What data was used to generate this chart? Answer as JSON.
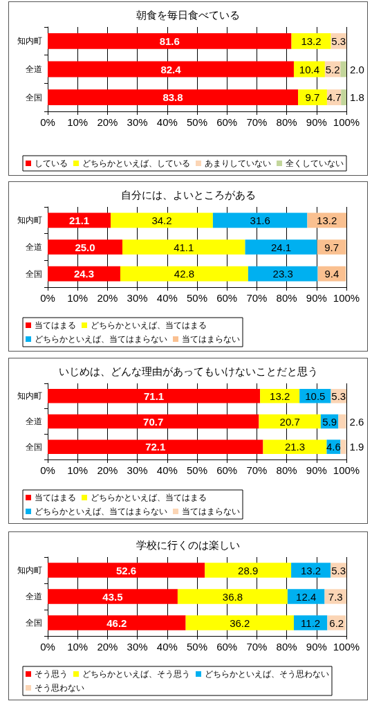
{
  "chart_data": [
    {
      "type": "bar",
      "title": "朝食を毎日食べている",
      "orientation": "horizontal",
      "stacked": true,
      "categories": [
        "知内町",
        "全道",
        "全国"
      ],
      "xlim": [
        0,
        100
      ],
      "xticks": [
        {
          "value": 0,
          "label": "0%"
        },
        {
          "value": 10,
          "label": "10%"
        },
        {
          "value": 20,
          "label": "20%"
        },
        {
          "value": 30,
          "label": "30%"
        },
        {
          "value": 40,
          "label": "40%"
        },
        {
          "value": 50,
          "label": "50%"
        },
        {
          "value": 60,
          "label": "60%"
        },
        {
          "value": 70,
          "label": "70%"
        },
        {
          "value": 80,
          "label": "80%"
        },
        {
          "value": 90,
          "label": "90%"
        },
        {
          "value": 100,
          "label": "100%"
        }
      ],
      "grid": "x",
      "legend": "bottom",
      "series": [
        {
          "name": "している",
          "color": "#ff0000",
          "values": [
            81.6,
            82.4,
            83.8
          ],
          "value_labels": [
            "81.6",
            "82.4",
            "83.8"
          ]
        },
        {
          "name": "どちらかといえば、している",
          "color": "#ffff00",
          "values": [
            13.2,
            10.4,
            9.7
          ],
          "value_labels": [
            "13.2",
            "10.4",
            "9.7"
          ]
        },
        {
          "name": "あまりしていない",
          "color": "#fbd5b5",
          "values": [
            5.3,
            5.2,
            4.7
          ],
          "value_labels": [
            "5.3",
            "5.2",
            "4.7"
          ]
        },
        {
          "name": "全くしていない",
          "color": "#c3d69b",
          "values": [
            null,
            2.0,
            1.8
          ],
          "value_labels": [
            null,
            "2.0",
            "1.8"
          ]
        }
      ]
    },
    {
      "type": "bar",
      "title": "自分には、よいところがある",
      "orientation": "horizontal",
      "stacked": true,
      "categories": [
        "知内町",
        "全道",
        "全国"
      ],
      "xlim": [
        0,
        100
      ],
      "xticks": [
        {
          "value": 0,
          "label": "0%"
        },
        {
          "value": 10,
          "label": "10%"
        },
        {
          "value": 20,
          "label": "20%"
        },
        {
          "value": 30,
          "label": "30%"
        },
        {
          "value": 40,
          "label": "40%"
        },
        {
          "value": 50,
          "label": "50%"
        },
        {
          "value": 60,
          "label": "60%"
        },
        {
          "value": 70,
          "label": "70%"
        },
        {
          "value": 80,
          "label": "80%"
        },
        {
          "value": 90,
          "label": "90%"
        },
        {
          "value": 100,
          "label": "100%"
        }
      ],
      "grid": "x",
      "legend": "bottom",
      "series": [
        {
          "name": "当てはまる",
          "color": "#ff0000",
          "values": [
            21.1,
            25.0,
            24.3
          ],
          "value_labels": [
            "21.1",
            "25.0",
            "24.3"
          ]
        },
        {
          "name": "どちらかといえば、当てはまる",
          "color": "#ffff00",
          "values": [
            34.2,
            41.1,
            42.8
          ],
          "value_labels": [
            "34.2",
            "41.1",
            "42.8"
          ]
        },
        {
          "name": "どちらかといえば、当てはまらない",
          "color": "#00b0f0",
          "values": [
            31.6,
            24.1,
            23.3
          ],
          "value_labels": [
            "31.6",
            "24.1",
            "23.3"
          ]
        },
        {
          "name": "当てはまらない",
          "color": "#fac090",
          "values": [
            13.2,
            9.7,
            9.4
          ],
          "value_labels": [
            "13.2",
            "9.7",
            "9.4"
          ]
        }
      ]
    },
    {
      "type": "bar",
      "title": "いじめは、どんな理由があってもいけないことだと思う",
      "orientation": "horizontal",
      "stacked": true,
      "categories": [
        "知内町",
        "全道",
        "全国"
      ],
      "xlim": [
        0,
        100
      ],
      "xticks": [
        {
          "value": 0,
          "label": "0%"
        },
        {
          "value": 10,
          "label": "10%"
        },
        {
          "value": 20,
          "label": "20%"
        },
        {
          "value": 30,
          "label": "30%"
        },
        {
          "value": 40,
          "label": "40%"
        },
        {
          "value": 50,
          "label": "50%"
        },
        {
          "value": 60,
          "label": "60%"
        },
        {
          "value": 70,
          "label": "70%"
        },
        {
          "value": 80,
          "label": "80%"
        },
        {
          "value": 90,
          "label": "90%"
        },
        {
          "value": 100,
          "label": "100%"
        }
      ],
      "grid": "x",
      "legend": "bottom",
      "series": [
        {
          "name": "当てはまる",
          "color": "#ff0000",
          "values": [
            71.1,
            70.7,
            72.1
          ],
          "value_labels": [
            "71.1",
            "70.7",
            "72.1"
          ]
        },
        {
          "name": "どちらかといえば、当てはまる",
          "color": "#ffff00",
          "values": [
            13.2,
            20.7,
            21.3
          ],
          "value_labels": [
            "13.2",
            "20.7",
            "21.3"
          ]
        },
        {
          "name": "どちらかといえば、当てはまらない",
          "color": "#00b0f0",
          "values": [
            10.5,
            5.9,
            4.6
          ],
          "value_labels": [
            "10.5",
            "5.9",
            "4.6"
          ]
        },
        {
          "name": "当てはまらない",
          "color": "#fbd5b5",
          "values": [
            5.3,
            2.6,
            1.9
          ],
          "value_labels": [
            "5.3",
            "2.6",
            "1.9"
          ]
        }
      ]
    },
    {
      "type": "bar",
      "title": "学校に行くのは楽しい",
      "orientation": "horizontal",
      "stacked": true,
      "categories": [
        "知内町",
        "全道",
        "全国"
      ],
      "xlim": [
        0,
        100
      ],
      "xticks": [
        {
          "value": 0,
          "label": "0%"
        },
        {
          "value": 10,
          "label": "10%"
        },
        {
          "value": 20,
          "label": "20%"
        },
        {
          "value": 30,
          "label": "30%"
        },
        {
          "value": 40,
          "label": "40%"
        },
        {
          "value": 50,
          "label": "50%"
        },
        {
          "value": 60,
          "label": "60%"
        },
        {
          "value": 70,
          "label": "70%"
        },
        {
          "value": 80,
          "label": "80%"
        },
        {
          "value": 90,
          "label": "90%"
        },
        {
          "value": 100,
          "label": "100%"
        }
      ],
      "grid": "x",
      "legend": "bottom",
      "series": [
        {
          "name": "そう思う",
          "color": "#ff0000",
          "values": [
            52.6,
            43.5,
            46.2
          ],
          "value_labels": [
            "52.6",
            "43.5",
            "46.2"
          ]
        },
        {
          "name": "どちらかといえば、そう思う",
          "color": "#ffff00",
          "values": [
            28.9,
            36.8,
            36.2
          ],
          "value_labels": [
            "28.9",
            "36.8",
            "36.2"
          ]
        },
        {
          "name": "どちらかといえば、そう思わない",
          "color": "#00b0f0",
          "values": [
            13.2,
            12.4,
            11.2
          ],
          "value_labels": [
            "13.2",
            "12.4",
            "11.2"
          ]
        },
        {
          "name": "そう思わない",
          "color": "#fbd5b5",
          "values": [
            5.3,
            7.3,
            6.2
          ],
          "value_labels": [
            "5.3",
            "7.3",
            "6.2"
          ]
        }
      ]
    }
  ]
}
